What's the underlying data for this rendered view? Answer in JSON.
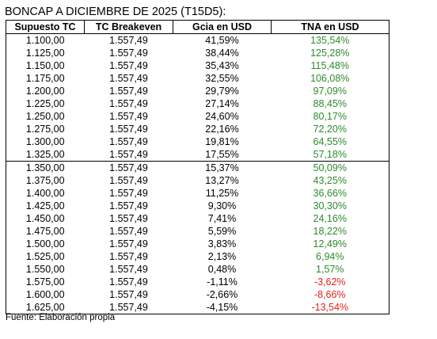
{
  "title": "BONCAP A DICIEMBRE DE 2025 (T15D5):",
  "table": {
    "headers": [
      "Supuesto TC",
      "TC Breakeven",
      "Gcia en USD",
      "TNA en USD"
    ],
    "rows": [
      [
        "1.100,00",
        "1.557,49",
        "41,59%",
        "135,54%"
      ],
      [
        "1.125,00",
        "1.557,49",
        "38,44%",
        "125,28%"
      ],
      [
        "1.150,00",
        "1.557,49",
        "35,43%",
        "115,48%"
      ],
      [
        "1.175,00",
        "1.557,49",
        "32,55%",
        "106,08%"
      ],
      [
        "1.200,00",
        "1.557,49",
        "29,79%",
        "97,09%"
      ],
      [
        "1.225,00",
        "1.557,49",
        "27,14%",
        "88,45%"
      ],
      [
        "1.250,00",
        "1.557,49",
        "24,60%",
        "80,17%"
      ],
      [
        "1.275,00",
        "1.557,49",
        "22,16%",
        "72,20%"
      ],
      [
        "1.300,00",
        "1.557,49",
        "19,81%",
        "64,55%"
      ],
      [
        "1.325,00",
        "1.557,49",
        "17,55%",
        "57,18%"
      ],
      [
        "1.350,00",
        "1.557,49",
        "15,37%",
        "50,09%"
      ],
      [
        "1.375,00",
        "1.557,49",
        "13,27%",
        "43,25%"
      ],
      [
        "1.400,00",
        "1.557,49",
        "11,25%",
        "36,66%"
      ],
      [
        "1.425,00",
        "1.557,49",
        "9,30%",
        "30,30%"
      ],
      [
        "1.450,00",
        "1.557,49",
        "7,41%",
        "24,16%"
      ],
      [
        "1.475,00",
        "1.557,49",
        "5,59%",
        "18,22%"
      ],
      [
        "1.500,00",
        "1.557,49",
        "3,83%",
        "12,49%"
      ],
      [
        "1.525,00",
        "1.557,49",
        "2,13%",
        "6,94%"
      ],
      [
        "1.550,00",
        "1.557,49",
        "0,48%",
        "1,57%"
      ],
      [
        "1.575,00",
        "1.557,49",
        "-1,11%",
        "-3,62%"
      ],
      [
        "1.600,00",
        "1.557,49",
        "-2,66%",
        "-8,66%"
      ],
      [
        "1.625,00",
        "1.557,49",
        "-4,15%",
        "-13,54%"
      ]
    ]
  },
  "colors": {
    "positive": "#2e8b2e",
    "negative": "#e8211a"
  },
  "source": "Fuente: Elaboración propia"
}
